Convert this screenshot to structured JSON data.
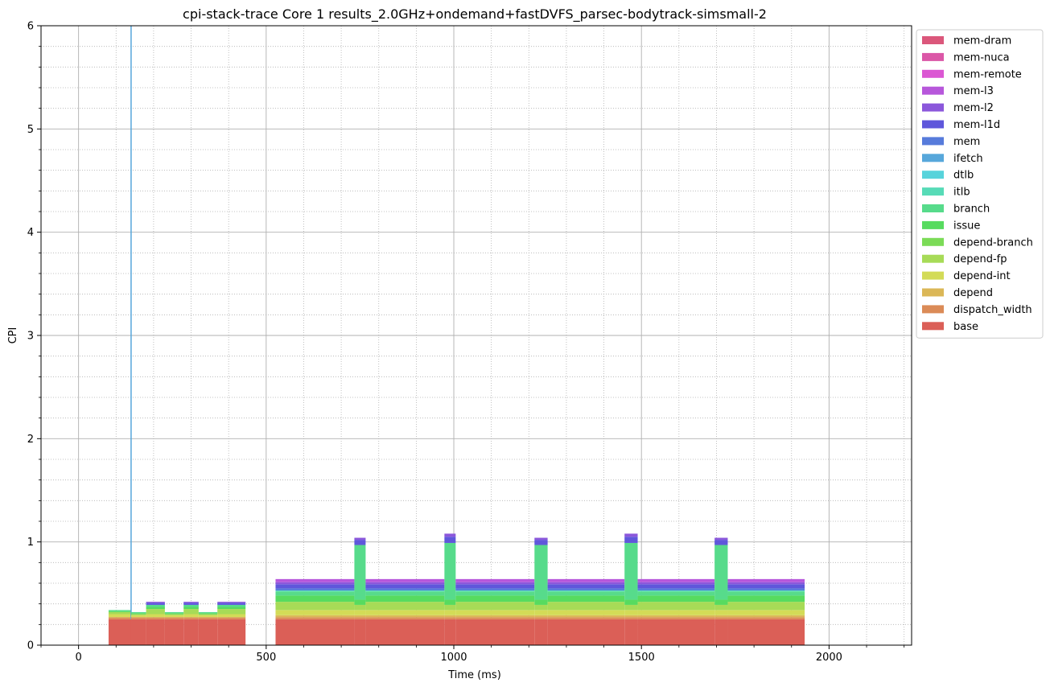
{
  "chart_data": {
    "type": "area",
    "stacked": true,
    "title": "cpi-stack-trace Core 1 results_2.0GHz+ondemand+fastDVFS_parsec-bodytrack-simsmall-2",
    "xlabel": "Time (ms)",
    "ylabel": "CPI",
    "xlim": [
      -100,
      2220
    ],
    "ylim": [
      0,
      6
    ],
    "x_ticks": [
      "0",
      "500",
      "1000",
      "1500",
      "2000"
    ],
    "y_ticks": [
      "0",
      "1",
      "2",
      "3",
      "4",
      "5",
      "6"
    ],
    "grid": {
      "major": true,
      "minor": true,
      "major_style": "solid",
      "minor_style": "dotted"
    },
    "legend": {
      "position": "outside-upper-right"
    },
    "series": [
      {
        "name": "base",
        "color": "#db5f57"
      },
      {
        "name": "dispatch_width",
        "color": "#db8b57"
      },
      {
        "name": "depend",
        "color": "#dbb757"
      },
      {
        "name": "depend-int",
        "color": "#d3db57"
      },
      {
        "name": "depend-fp",
        "color": "#a7db57"
      },
      {
        "name": "depend-branch",
        "color": "#7bdb57"
      },
      {
        "name": "issue",
        "color": "#57db5f"
      },
      {
        "name": "branch",
        "color": "#57db8b"
      },
      {
        "name": "itlb",
        "color": "#57dbb7"
      },
      {
        "name": "dtlb",
        "color": "#57d3db"
      },
      {
        "name": "ifetch",
        "color": "#57a7db"
      },
      {
        "name": "mem",
        "color": "#577bdb"
      },
      {
        "name": "mem-l1d",
        "color": "#5f57db"
      },
      {
        "name": "mem-l2",
        "color": "#8b57db"
      },
      {
        "name": "mem-l3",
        "color": "#b757db"
      },
      {
        "name": "mem-remote",
        "color": "#db57d3"
      },
      {
        "name": "mem-nuca",
        "color": "#db57a7"
      },
      {
        "name": "mem-dram",
        "color": "#db577b"
      }
    ],
    "segments": [
      {
        "x": [
          80,
          140
        ],
        "values": {
          "base": 0.25,
          "dispatch_width": 0.02,
          "depend-int": 0.03,
          "depend-fp": 0.02,
          "issue": 0.01,
          "branch": 0.01
        }
      },
      {
        "x": 140,
        "spike": true,
        "values": {
          "base": 0.25,
          "ifetch": 5.75
        }
      },
      {
        "x": [
          140,
          180
        ],
        "values": {
          "base": 0.25,
          "dispatch_width": 0.02,
          "depend-int": 0.02,
          "depend-fp": 0.01,
          "issue": 0.01,
          "branch": 0.01
        }
      },
      {
        "x": [
          180,
          230
        ],
        "values": {
          "base": 0.25,
          "dispatch_width": 0.02,
          "depend-int": 0.03,
          "depend-fp": 0.05,
          "issue": 0.02,
          "branch": 0.02,
          "mem-l1d": 0.02,
          "mem-l2": 0.01
        }
      },
      {
        "x": [
          230,
          280
        ],
        "values": {
          "base": 0.25,
          "dispatch_width": 0.02,
          "depend-int": 0.02,
          "depend-fp": 0.01,
          "issue": 0.01,
          "branch": 0.01
        }
      },
      {
        "x": [
          280,
          320
        ],
        "values": {
          "base": 0.25,
          "dispatch_width": 0.02,
          "depend-int": 0.03,
          "depend-fp": 0.05,
          "issue": 0.02,
          "branch": 0.02,
          "mem-l1d": 0.02,
          "mem-l2": 0.01
        }
      },
      {
        "x": [
          320,
          370
        ],
        "values": {
          "base": 0.25,
          "dispatch_width": 0.02,
          "depend-int": 0.02,
          "depend-fp": 0.01,
          "issue": 0.01,
          "branch": 0.01
        }
      },
      {
        "x": [
          370,
          445
        ],
        "values": {
          "base": 0.25,
          "dispatch_width": 0.02,
          "depend-int": 0.03,
          "depend-fp": 0.05,
          "issue": 0.02,
          "branch": 0.02,
          "mem-l1d": 0.02,
          "mem-l2": 0.01
        }
      },
      {
        "x": [
          525,
          735
        ],
        "values": {
          "base": 0.25,
          "dispatch_width": 0.02,
          "depend": 0.02,
          "depend-int": 0.05,
          "depend-fp": 0.08,
          "issue": 0.06,
          "branch": 0.04,
          "itlb": 0.01,
          "mem": 0.02,
          "mem-l1d": 0.04,
          "mem-l2": 0.02,
          "mem-l3": 0.03
        }
      },
      {
        "x": [
          735,
          765
        ],
        "values": {
          "base": 0.25,
          "dispatch_width": 0.02,
          "depend": 0.02,
          "depend-int": 0.05,
          "depend-fp": 0.05,
          "issue": 0.05,
          "branch": 0.53,
          "mem-l1d": 0.05,
          "mem-l2": 0.02
        }
      },
      {
        "x": [
          765,
          975
        ],
        "values": {
          "base": 0.25,
          "dispatch_width": 0.02,
          "depend": 0.02,
          "depend-int": 0.05,
          "depend-fp": 0.08,
          "issue": 0.06,
          "branch": 0.04,
          "itlb": 0.01,
          "mem": 0.02,
          "mem-l1d": 0.04,
          "mem-l2": 0.02,
          "mem-l3": 0.03
        }
      },
      {
        "x": [
          975,
          1005
        ],
        "values": {
          "base": 0.25,
          "dispatch_width": 0.02,
          "depend": 0.02,
          "depend-int": 0.05,
          "depend-fp": 0.05,
          "issue": 0.05,
          "branch": 0.55,
          "mem-l1d": 0.06,
          "mem-l2": 0.03
        }
      },
      {
        "x": [
          1005,
          1215
        ],
        "values": {
          "base": 0.25,
          "dispatch_width": 0.02,
          "depend": 0.02,
          "depend-int": 0.05,
          "depend-fp": 0.08,
          "issue": 0.06,
          "branch": 0.04,
          "itlb": 0.01,
          "mem": 0.02,
          "mem-l1d": 0.04,
          "mem-l2": 0.02,
          "mem-l3": 0.03
        }
      },
      {
        "x": [
          1215,
          1250
        ],
        "values": {
          "base": 0.25,
          "dispatch_width": 0.02,
          "depend": 0.02,
          "depend-int": 0.05,
          "depend-fp": 0.05,
          "issue": 0.05,
          "branch": 0.53,
          "mem-l1d": 0.05,
          "mem-l2": 0.02
        }
      },
      {
        "x": [
          1250,
          1455
        ],
        "values": {
          "base": 0.25,
          "dispatch_width": 0.02,
          "depend": 0.02,
          "depend-int": 0.05,
          "depend-fp": 0.08,
          "issue": 0.06,
          "branch": 0.04,
          "itlb": 0.01,
          "mem": 0.02,
          "mem-l1d": 0.04,
          "mem-l2": 0.02,
          "mem-l3": 0.03
        }
      },
      {
        "x": [
          1455,
          1490
        ],
        "values": {
          "base": 0.25,
          "dispatch_width": 0.02,
          "depend": 0.02,
          "depend-int": 0.05,
          "depend-fp": 0.05,
          "issue": 0.05,
          "branch": 0.55,
          "mem-l1d": 0.06,
          "mem-l2": 0.03
        }
      },
      {
        "x": [
          1490,
          1695
        ],
        "values": {
          "base": 0.25,
          "dispatch_width": 0.02,
          "depend": 0.02,
          "depend-int": 0.05,
          "depend-fp": 0.08,
          "issue": 0.06,
          "branch": 0.04,
          "itlb": 0.01,
          "mem": 0.02,
          "mem-l1d": 0.04,
          "mem-l2": 0.02,
          "mem-l3": 0.03
        }
      },
      {
        "x": [
          1695,
          1730
        ],
        "values": {
          "base": 0.25,
          "dispatch_width": 0.02,
          "depend": 0.02,
          "depend-int": 0.05,
          "depend-fp": 0.05,
          "issue": 0.05,
          "branch": 0.53,
          "mem-l1d": 0.05,
          "mem-l2": 0.02
        }
      },
      {
        "x": [
          1730,
          1935
        ],
        "values": {
          "base": 0.25,
          "dispatch_width": 0.02,
          "depend": 0.02,
          "depend-int": 0.05,
          "depend-fp": 0.08,
          "issue": 0.06,
          "branch": 0.04,
          "itlb": 0.01,
          "mem": 0.02,
          "mem-l1d": 0.04,
          "mem-l2": 0.02,
          "mem-l3": 0.03
        }
      }
    ]
  }
}
